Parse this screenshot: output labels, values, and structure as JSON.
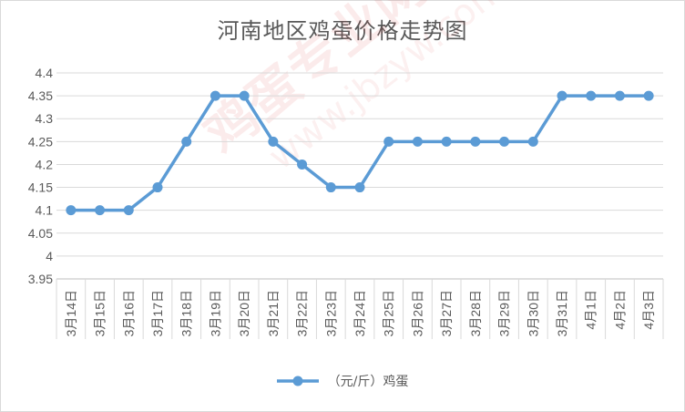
{
  "chart_data": {
    "type": "line",
    "title": "河南地区鸡蛋价格走势图",
    "categories": [
      "3月14日",
      "3月15日",
      "3月16日",
      "3月17日",
      "3月18日",
      "3月19日",
      "3月20日",
      "3月21日",
      "3月22日",
      "3月23日",
      "3月24日",
      "3月25日",
      "3月26日",
      "3月27日",
      "3月28日",
      "3月29日",
      "3月30日",
      "3月31日",
      "4月1日",
      "4月2日",
      "4月3日"
    ],
    "series": [
      {
        "name": "（元/斤）鸡蛋",
        "color": "#5b9bd5",
        "values": [
          4.1,
          4.1,
          4.1,
          4.15,
          4.25,
          4.35,
          4.35,
          4.25,
          4.2,
          4.15,
          4.15,
          4.25,
          4.25,
          4.25,
          4.25,
          4.25,
          4.25,
          4.35,
          4.35,
          4.35,
          4.35
        ]
      }
    ],
    "ylim": [
      3.95,
      4.4
    ],
    "yticks": [
      "3.95",
      "4",
      "4.05",
      "4.1",
      "4.15",
      "4.2",
      "4.25",
      "4.3",
      "4.35",
      "4.4"
    ],
    "grid": true,
    "legend": "bottom"
  },
  "watermark": {
    "main": "鸡蛋专业网",
    "sub": "www.jbzyw.com"
  }
}
